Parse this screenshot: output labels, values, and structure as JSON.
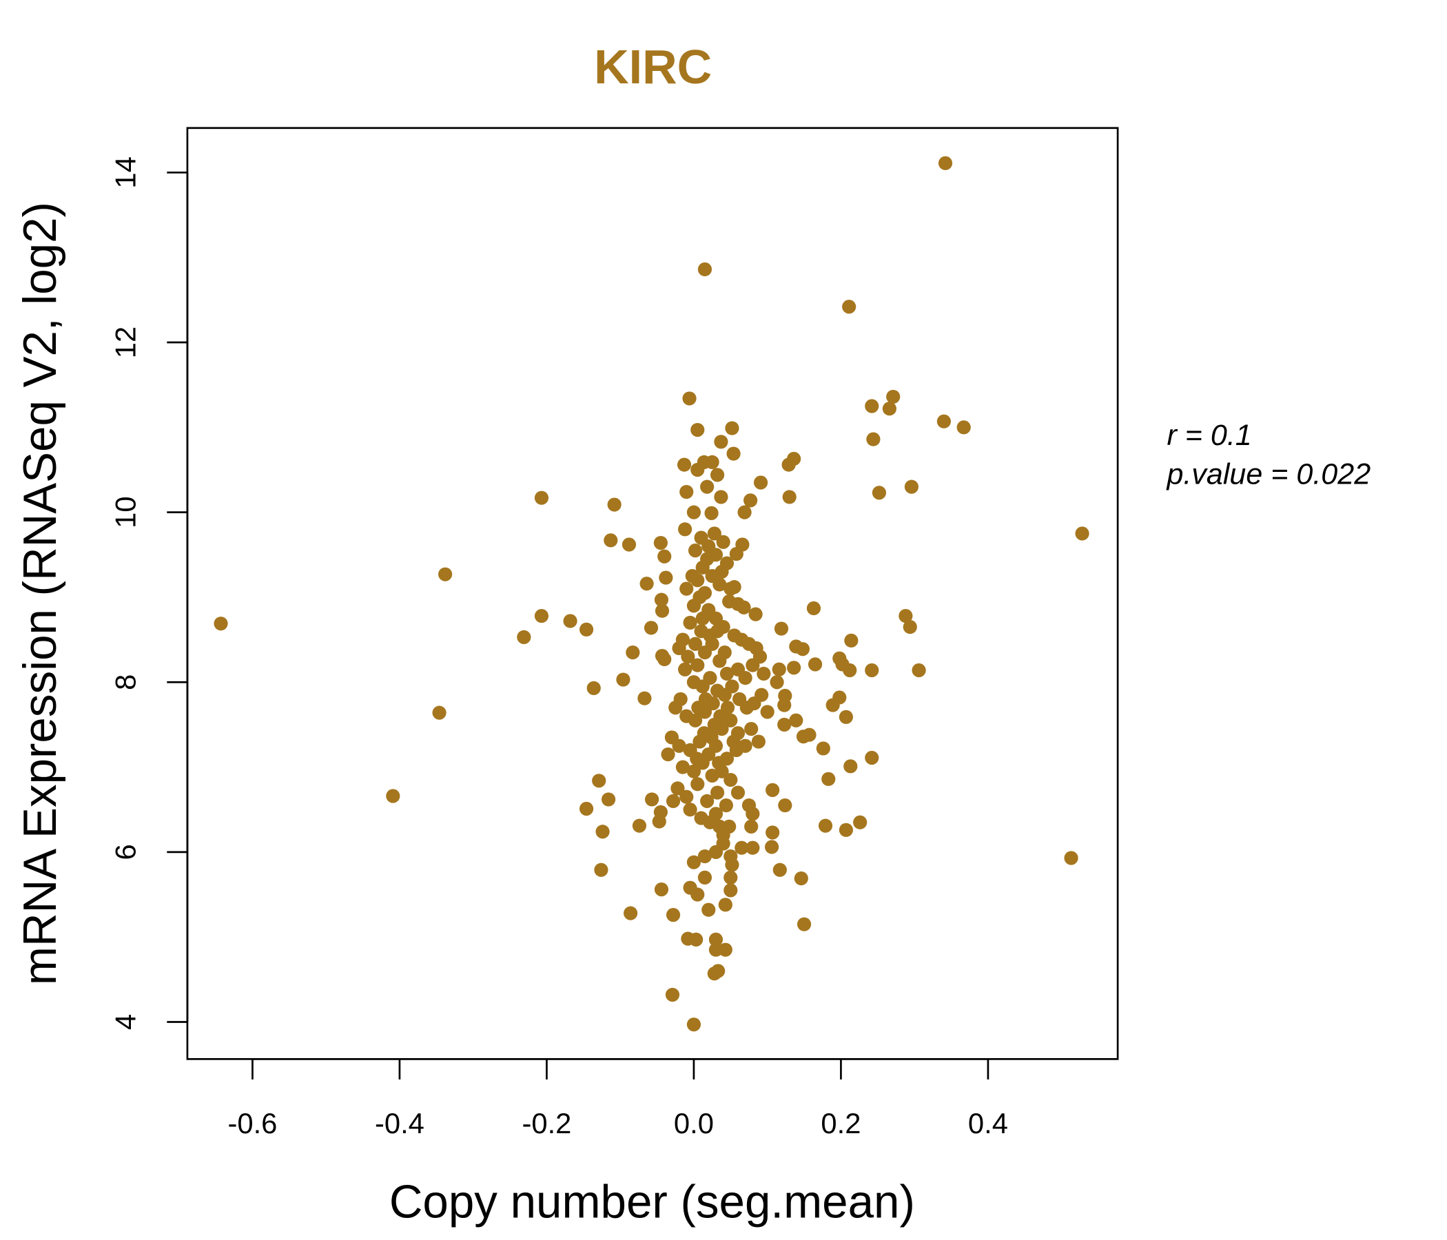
{
  "chart_data": {
    "type": "scatter",
    "title": "KIRC",
    "xlabel": "Copy number (seg.mean)",
    "ylabel": "mRNA Expression (RNASeq V2, log2)",
    "xlim": [
      -0.69,
      0.58
    ],
    "ylim": [
      3.6,
      14.6
    ],
    "xticks": [
      -0.6,
      -0.4,
      -0.2,
      0.0,
      0.2,
      0.4
    ],
    "xtick_labels": [
      "-0.6",
      "-0.4",
      "-0.2",
      "0.0",
      "0.2",
      "0.4"
    ],
    "yticks": [
      4,
      6,
      8,
      10,
      12,
      14
    ],
    "ytick_labels": [
      "4",
      "6",
      "8",
      "10",
      "12",
      "14"
    ],
    "grid": false,
    "point_color": "#A5761E",
    "title_color": "#A5761E",
    "annotations": {
      "r": "r = 0.1",
      "p": "p.value = 0.022"
    },
    "points": [
      [
        -0.643,
        8.69
      ],
      [
        -0.338,
        9.27
      ],
      [
        -0.346,
        7.64
      ],
      [
        -0.409,
        6.66
      ],
      [
        -0.231,
        8.53
      ],
      [
        -0.207,
        10.17
      ],
      [
        -0.207,
        8.78
      ],
      [
        -0.168,
        8.72
      ],
      [
        -0.146,
        8.62
      ],
      [
        -0.136,
        7.93
      ],
      [
        -0.129,
        6.84
      ],
      [
        -0.116,
        6.62
      ],
      [
        -0.146,
        6.51
      ],
      [
        -0.124,
        6.24
      ],
      [
        -0.126,
        5.79
      ],
      [
        -0.108,
        10.09
      ],
      [
        -0.113,
        9.67
      ],
      [
        -0.088,
        9.62
      ],
      [
        -0.096,
        8.03
      ],
      [
        -0.083,
        8.35
      ],
      [
        -0.067,
        7.81
      ],
      [
        -0.074,
        6.31
      ],
      [
        -0.086,
        5.28
      ],
      [
        -0.064,
        9.16
      ],
      [
        -0.058,
        8.64
      ],
      [
        -0.045,
        9.64
      ],
      [
        -0.04,
        9.48
      ],
      [
        -0.038,
        9.23
      ],
      [
        -0.044,
        8.97
      ],
      [
        -0.043,
        8.84
      ],
      [
        -0.043,
        8.31
      ],
      [
        -0.04,
        8.27
      ],
      [
        -0.057,
        6.62
      ],
      [
        -0.045,
        6.47
      ],
      [
        -0.047,
        6.36
      ],
      [
        -0.044,
        5.56
      ],
      [
        -0.028,
        5.26
      ],
      [
        -0.029,
        4.32
      ],
      [
        0.0,
        3.97
      ],
      [
        -0.008,
        4.98
      ],
      [
        0.003,
        4.97
      ],
      [
        0.028,
        4.57
      ],
      [
        0.033,
        4.6
      ],
      [
        0.03,
        4.97
      ],
      [
        0.03,
        4.85
      ],
      [
        0.043,
        4.85
      ],
      [
        0.015,
        12.86
      ],
      [
        -0.006,
        11.34
      ],
      [
        0.005,
        10.97
      ],
      [
        0.052,
        10.99
      ],
      [
        0.037,
        10.83
      ],
      [
        0.054,
        10.69
      ],
      [
        -0.013,
        10.56
      ],
      [
        0.014,
        10.59
      ],
      [
        0.025,
        10.59
      ],
      [
        0.032,
        10.44
      ],
      [
        0.005,
        10.5
      ],
      [
        -0.01,
        10.24
      ],
      [
        0.018,
        10.3
      ],
      [
        0.037,
        10.18
      ],
      [
        0.024,
        9.99
      ],
      [
        0.0,
        10.0
      ],
      [
        0.091,
        10.35
      ],
      [
        0.077,
        10.14
      ],
      [
        0.069,
        10.0
      ],
      [
        0.066,
        9.62
      ],
      [
        0.058,
        9.51
      ],
      [
        0.055,
        9.12
      ],
      [
        0.06,
        8.92
      ],
      [
        0.068,
        8.88
      ],
      [
        0.084,
        8.8
      ],
      [
        0.129,
        10.56
      ],
      [
        0.136,
        10.63
      ],
      [
        0.13,
        10.18
      ],
      [
        0.119,
        8.63
      ],
      [
        0.163,
        8.87
      ],
      [
        0.139,
        8.42
      ],
      [
        0.148,
        8.39
      ],
      [
        0.136,
        8.17
      ],
      [
        0.116,
        8.15
      ],
      [
        0.113,
        8.0
      ],
      [
        0.124,
        7.84
      ],
      [
        0.123,
        7.73
      ],
      [
        0.139,
        7.55
      ],
      [
        0.123,
        7.5
      ],
      [
        0.149,
        7.36
      ],
      [
        0.157,
        7.38
      ],
      [
        0.165,
        8.21
      ],
      [
        0.176,
        7.22
      ],
      [
        0.183,
        6.86
      ],
      [
        0.179,
        6.31
      ],
      [
        0.107,
        6.73
      ],
      [
        0.124,
        6.55
      ],
      [
        0.107,
        6.23
      ],
      [
        0.106,
        6.06
      ],
      [
        0.117,
        5.79
      ],
      [
        0.146,
        5.69
      ],
      [
        0.15,
        5.15
      ],
      [
        0.211,
        12.42
      ],
      [
        0.242,
        11.25
      ],
      [
        0.244,
        10.86
      ],
      [
        0.271,
        11.36
      ],
      [
        0.266,
        11.22
      ],
      [
        0.252,
        10.23
      ],
      [
        0.296,
        10.3
      ],
      [
        0.342,
        14.11
      ],
      [
        0.34,
        11.07
      ],
      [
        0.367,
        11.0
      ],
      [
        0.528,
        9.75
      ],
      [
        0.513,
        5.93
      ],
      [
        0.288,
        8.78
      ],
      [
        0.294,
        8.65
      ],
      [
        0.306,
        8.14
      ],
      [
        0.242,
        8.14
      ],
      [
        0.214,
        8.49
      ],
      [
        0.198,
        8.28
      ],
      [
        0.202,
        8.21
      ],
      [
        0.212,
        8.14
      ],
      [
        0.198,
        7.82
      ],
      [
        0.189,
        7.73
      ],
      [
        0.207,
        7.59
      ],
      [
        0.213,
        7.01
      ],
      [
        0.242,
        7.11
      ],
      [
        0.226,
        6.35
      ],
      [
        0.207,
        6.26
      ],
      [
        -0.012,
        9.8
      ],
      [
        0.002,
        9.55
      ],
      [
        0.01,
        9.7
      ],
      [
        0.02,
        9.6
      ],
      [
        0.03,
        9.5
      ],
      [
        0.04,
        9.65
      ],
      [
        0.045,
        9.4
      ],
      [
        0.012,
        9.35
      ],
      [
        0.025,
        9.25
      ],
      [
        0.005,
        9.2
      ],
      [
        -0.01,
        9.1
      ],
      [
        0.015,
        9.05
      ],
      [
        0.035,
        9.15
      ],
      [
        0.048,
        8.95
      ],
      [
        0.0,
        8.9
      ],
      [
        0.02,
        8.85
      ],
      [
        0.03,
        8.75
      ],
      [
        -0.005,
        8.7
      ],
      [
        0.01,
        8.6
      ],
      [
        0.04,
        8.65
      ],
      [
        0.055,
        8.55
      ],
      [
        0.065,
        8.5
      ],
      [
        0.075,
        8.45
      ],
      [
        0.085,
        8.4
      ],
      [
        0.09,
        8.3
      ],
      [
        0.08,
        8.2
      ],
      [
        0.095,
        8.1
      ],
      [
        0.07,
        8.05
      ],
      [
        0.06,
        8.15
      ],
      [
        -0.015,
        8.5
      ],
      [
        -0.02,
        8.4
      ],
      [
        -0.008,
        8.3
      ],
      [
        0.005,
        8.2
      ],
      [
        0.015,
        8.35
      ],
      [
        0.025,
        8.45
      ],
      [
        0.035,
        8.25
      ],
      [
        0.045,
        8.1
      ],
      [
        -0.012,
        8.15
      ],
      [
        0.0,
        8.0
      ],
      [
        0.012,
        7.95
      ],
      [
        0.022,
        8.05
      ],
      [
        0.032,
        7.9
      ],
      [
        0.042,
        7.85
      ],
      [
        0.052,
        7.95
      ],
      [
        0.062,
        7.8
      ],
      [
        0.072,
        7.7
      ],
      [
        0.082,
        7.75
      ],
      [
        0.092,
        7.85
      ],
      [
        0.1,
        7.65
      ],
      [
        -0.018,
        7.8
      ],
      [
        -0.025,
        7.7
      ],
      [
        -0.01,
        7.6
      ],
      [
        0.002,
        7.55
      ],
      [
        0.015,
        7.65
      ],
      [
        0.028,
        7.5
      ],
      [
        0.038,
        7.45
      ],
      [
        0.05,
        7.55
      ],
      [
        0.06,
        7.4
      ],
      [
        0.078,
        7.45
      ],
      [
        0.088,
        7.3
      ],
      [
        -0.03,
        7.35
      ],
      [
        -0.02,
        7.25
      ],
      [
        -0.005,
        7.2
      ],
      [
        0.008,
        7.3
      ],
      [
        0.02,
        7.15
      ],
      [
        0.03,
        7.25
      ],
      [
        0.045,
        7.1
      ],
      [
        0.058,
        7.2
      ],
      [
        0.07,
        7.25
      ],
      [
        -0.035,
        7.15
      ],
      [
        -0.015,
        7.0
      ],
      [
        0.0,
        6.95
      ],
      [
        0.012,
        7.05
      ],
      [
        0.025,
        6.9
      ],
      [
        0.038,
        6.95
      ],
      [
        0.05,
        6.85
      ],
      [
        0.06,
        6.7
      ],
      [
        -0.022,
        6.75
      ],
      [
        -0.01,
        6.65
      ],
      [
        0.005,
        6.8
      ],
      [
        0.018,
        6.6
      ],
      [
        0.032,
        6.7
      ],
      [
        0.044,
        6.55
      ],
      [
        0.075,
        6.55
      ],
      [
        0.08,
        6.45
      ],
      [
        -0.028,
        6.6
      ],
      [
        -0.005,
        6.5
      ],
      [
        0.01,
        6.4
      ],
      [
        0.022,
        6.35
      ],
      [
        0.035,
        6.3
      ],
      [
        0.048,
        6.3
      ],
      [
        0.078,
        6.3
      ],
      [
        0.04,
        6.1
      ],
      [
        0.03,
        6.0
      ],
      [
        0.05,
        5.95
      ],
      [
        0.065,
        6.05
      ],
      [
        0.08,
        6.05
      ],
      [
        0.015,
        5.95
      ],
      [
        0.0,
        5.88
      ],
      [
        0.052,
        5.85
      ],
      [
        0.05,
        5.7
      ],
      [
        0.05,
        5.55
      ],
      [
        0.015,
        5.7
      ],
      [
        0.005,
        5.5
      ],
      [
        -0.005,
        5.58
      ],
      [
        0.02,
        5.32
      ],
      [
        0.043,
        5.38
      ],
      [
        0.03,
        6.45
      ],
      [
        0.04,
        6.2
      ],
      [
        0.012,
        8.75
      ],
      [
        0.022,
        8.55
      ],
      [
        0.032,
        8.6
      ],
      [
        0.002,
        8.45
      ],
      [
        0.042,
        8.35
      ],
      [
        0.018,
        9.45
      ],
      [
        0.028,
        9.75
      ],
      [
        -0.002,
        9.25
      ],
      [
        0.038,
        9.3
      ],
      [
        0.008,
        9.0
      ],
      [
        0.05,
        9.1
      ],
      [
        0.026,
        7.75
      ],
      [
        0.016,
        7.8
      ],
      [
        0.006,
        7.7
      ],
      [
        0.036,
        7.6
      ],
      [
        0.046,
        7.7
      ],
      [
        0.024,
        7.35
      ],
      [
        0.014,
        7.4
      ],
      [
        0.034,
        7.05
      ],
      [
        0.004,
        7.1
      ],
      [
        0.054,
        7.3
      ]
    ]
  }
}
